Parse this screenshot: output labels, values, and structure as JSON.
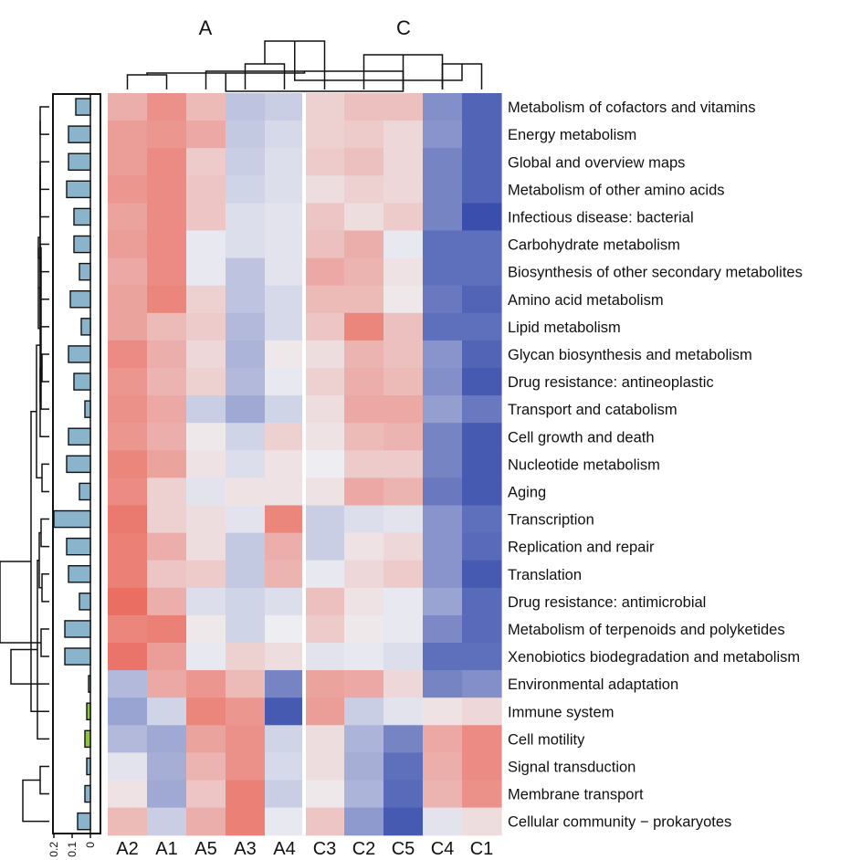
{
  "chart_data": {
    "type": "heatmap",
    "group_labels": [
      "A",
      "C"
    ],
    "columns": [
      "A2",
      "A1",
      "A5",
      "A3",
      "A4",
      "C3",
      "C2",
      "C5",
      "C4",
      "C1"
    ],
    "rows": [
      "Metabolism of cofactors and vitamins",
      "Energy metabolism",
      "Global and overview maps",
      "Metabolism of other amino acids",
      "Infectious disease: bacterial",
      "Carbohydrate metabolism",
      "Biosynthesis of other secondary metabolites",
      "Amino acid metabolism",
      "Lipid metabolism",
      "Glycan biosynthesis and metabolism",
      "Drug resistance: antineoplastic",
      "Transport and catabolism",
      "Cell growth and death",
      "Nucleotide metabolism",
      "Aging",
      "Transcription",
      "Replication and repair",
      "Translation",
      "Drug resistance: antimicrobial",
      "Metabolism of terpenoids and polyketides",
      "Xenobiotics biodegradation and metabolism",
      "Environmental adaptation",
      "Immune system",
      "Cell motility",
      "Signal transduction",
      "Membrane transport",
      "Cellular community − prokaryotes"
    ],
    "values": [
      [
        0.55,
        0.8,
        0.45,
        -0.4,
        -0.3,
        0.25,
        0.4,
        0.4,
        -0.9,
        -1.3
      ],
      [
        0.7,
        0.75,
        0.6,
        -0.35,
        -0.2,
        0.25,
        0.3,
        0.2,
        -0.85,
        -1.3
      ],
      [
        0.7,
        0.85,
        0.3,
        -0.3,
        -0.15,
        0.3,
        0.4,
        0.2,
        -1.0,
        -1.3
      ],
      [
        0.75,
        0.85,
        0.35,
        -0.25,
        -0.15,
        0.15,
        0.25,
        0.2,
        -1.0,
        -1.3
      ],
      [
        0.65,
        0.85,
        0.35,
        -0.15,
        -0.1,
        0.35,
        0.15,
        0.3,
        -1.0,
        -1.5
      ],
      [
        0.7,
        0.85,
        -0.05,
        -0.15,
        -0.1,
        0.4,
        0.55,
        -0.05,
        -1.2,
        -1.2
      ],
      [
        0.6,
        0.85,
        -0.05,
        -0.4,
        -0.1,
        0.6,
        0.5,
        0.1,
        -1.2,
        -1.2
      ],
      [
        0.65,
        0.9,
        0.25,
        -0.4,
        -0.2,
        0.45,
        0.45,
        0.05,
        -1.1,
        -1.3
      ],
      [
        0.65,
        0.45,
        0.3,
        -0.5,
        -0.2,
        0.35,
        0.9,
        0.4,
        -1.2,
        -1.2
      ],
      [
        0.85,
        0.55,
        0.2,
        -0.55,
        0.05,
        0.15,
        0.5,
        0.4,
        -0.85,
        -1.3
      ],
      [
        0.75,
        0.5,
        0.25,
        -0.5,
        -0.05,
        0.25,
        0.55,
        0.45,
        -0.9,
        -1.4
      ],
      [
        0.8,
        0.6,
        -0.3,
        -0.65,
        -0.25,
        0.15,
        0.6,
        0.6,
        -0.75,
        -1.1
      ],
      [
        0.75,
        0.55,
        0.05,
        -0.25,
        0.25,
        0.1,
        0.45,
        0.5,
        -1.0,
        -1.4
      ],
      [
        0.9,
        0.65,
        0.1,
        -0.15,
        0.1,
        0.0,
        0.3,
        0.3,
        -1.0,
        -1.4
      ],
      [
        0.85,
        0.25,
        -0.1,
        0.1,
        0.1,
        0.1,
        0.6,
        0.5,
        -1.1,
        -1.4
      ],
      [
        1.0,
        0.25,
        0.15,
        -0.1,
        0.9,
        -0.3,
        -0.15,
        -0.1,
        -0.85,
        -1.2
      ],
      [
        0.95,
        0.55,
        0.15,
        -0.35,
        0.55,
        -0.3,
        0.1,
        0.2,
        -0.85,
        -1.25
      ],
      [
        0.95,
        0.35,
        0.3,
        -0.35,
        0.5,
        -0.05,
        0.2,
        0.3,
        -0.85,
        -1.4
      ],
      [
        1.1,
        0.55,
        -0.15,
        -0.25,
        -0.15,
        0.4,
        0.1,
        -0.05,
        -0.7,
        -1.25
      ],
      [
        0.9,
        0.95,
        0.05,
        -0.25,
        0.0,
        0.3,
        0.05,
        -0.05,
        -0.95,
        -1.25
      ],
      [
        1.05,
        0.7,
        -0.05,
        0.25,
        0.15,
        -0.1,
        -0.05,
        -0.15,
        -1.2,
        -1.2
      ],
      [
        -0.5,
        0.6,
        0.75,
        0.45,
        -1.0,
        0.65,
        0.6,
        0.2,
        -1.0,
        -0.9
      ],
      [
        -0.7,
        -0.25,
        0.9,
        0.75,
        -1.4,
        0.7,
        -0.3,
        -0.1,
        0.1,
        0.2
      ],
      [
        -0.5,
        -0.65,
        0.65,
        0.8,
        -0.25,
        0.15,
        -0.55,
        -1.0,
        0.6,
        0.85
      ],
      [
        -0.1,
        -0.6,
        0.5,
        0.8,
        -0.2,
        0.15,
        -0.6,
        -1.2,
        0.55,
        0.85
      ],
      [
        0.1,
        -0.65,
        0.35,
        0.95,
        -0.3,
        0.05,
        -0.55,
        -1.25,
        0.5,
        0.8
      ],
      [
        0.45,
        -0.3,
        0.55,
        0.95,
        -0.05,
        0.35,
        -0.8,
        -1.4,
        -0.1,
        0.15
      ]
    ],
    "bar_values": [
      0.08,
      0.12,
      0.12,
      0.13,
      0.09,
      0.09,
      0.06,
      0.11,
      0.05,
      0.12,
      0.09,
      0.03,
      0.12,
      0.13,
      0.06,
      0.2,
      0.13,
      0.12,
      0.06,
      0.14,
      0.14,
      0.01,
      0.02,
      0.03,
      0.02,
      0.03,
      0.07
    ],
    "bar_colors_by_row": [
      "blue",
      "blue",
      "blue",
      "blue",
      "blue",
      "blue",
      "blue",
      "blue",
      "blue",
      "blue",
      "blue",
      "blue",
      "blue",
      "blue",
      "blue",
      "blue",
      "blue",
      "blue",
      "blue",
      "blue",
      "blue",
      "blue",
      "green",
      "green",
      "blue",
      "blue",
      "blue"
    ],
    "bar_axis": {
      "ticks": [
        0.2,
        0.1,
        0
      ],
      "tick_labels": [
        "0.2",
        "0.1",
        "0"
      ],
      "range": [
        0,
        0.2
      ]
    },
    "color_scale": {
      "low": "#3a4fad",
      "mid": "#eeeef2",
      "high": "#e8402e",
      "domain": [
        -1.5,
        0,
        1.5
      ]
    },
    "colors": {
      "bar_blue": "#8ab4cc",
      "bar_green": "#8cc63f",
      "outline": "#111111"
    },
    "dendrograms": [
      "columns",
      "rows"
    ],
    "grid": false,
    "legend": "none"
  }
}
